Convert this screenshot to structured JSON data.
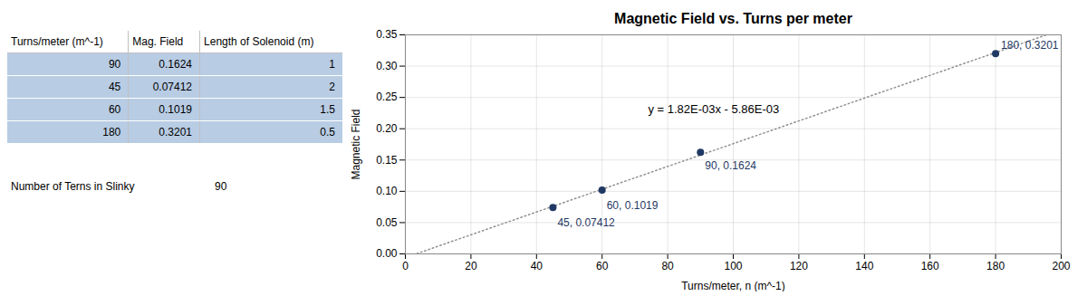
{
  "chart_data": [
    {
      "type": "table",
      "columns": [
        "Turns/meter (m^-1)",
        "Mag. Field",
        "Length of Solenoid (m)"
      ],
      "rows": [
        [
          90,
          0.1624,
          1
        ],
        [
          45,
          0.07412,
          2
        ],
        [
          60,
          0.1019,
          1.5
        ],
        [
          180,
          0.3201,
          0.5
        ]
      ],
      "annotations": [
        "Number of Terns in Slinky",
        "90"
      ],
      "color": "#b8cce4"
    },
    {
      "type": "scatter",
      "title": "Magnetic Field vs. Turns per meter",
      "xlabel": "Turns/meter, n (m^-1)",
      "ylabel": "Magnetic Field",
      "x": [
        45,
        60,
        90,
        180
      ],
      "values": [
        0.07412,
        0.1019,
        0.1624,
        0.3201
      ],
      "value_labels": [
        "45, 0.07412",
        "60, 0.1019",
        "90, 0.1624",
        "180, 0.3201"
      ],
      "data_labels": true,
      "color": "#1f3864",
      "trendline": {
        "type": "line",
        "x": [
          0,
          200
        ],
        "values": [
          -0.00586,
          0.35814
        ],
        "color": "#909090",
        "line_style": "dotted"
      },
      "annotations": [
        "y = 1.82E-03x - 5.86E-03"
      ],
      "xlim": [
        0,
        200
      ],
      "ylim": [
        0,
        0.35
      ],
      "xticks": [
        0,
        20,
        40,
        60,
        80,
        100,
        120,
        140,
        160,
        180,
        200
      ],
      "yticks": [
        {
          "value": 0,
          "label": "0.00"
        },
        0.05,
        {
          "value": 0.1,
          "label": "0.10"
        },
        0.15,
        {
          "value": 0.2,
          "label": "0.20"
        },
        0.25,
        {
          "value": 0.3,
          "label": "0.30"
        },
        0.35
      ],
      "grid": true
    }
  ]
}
